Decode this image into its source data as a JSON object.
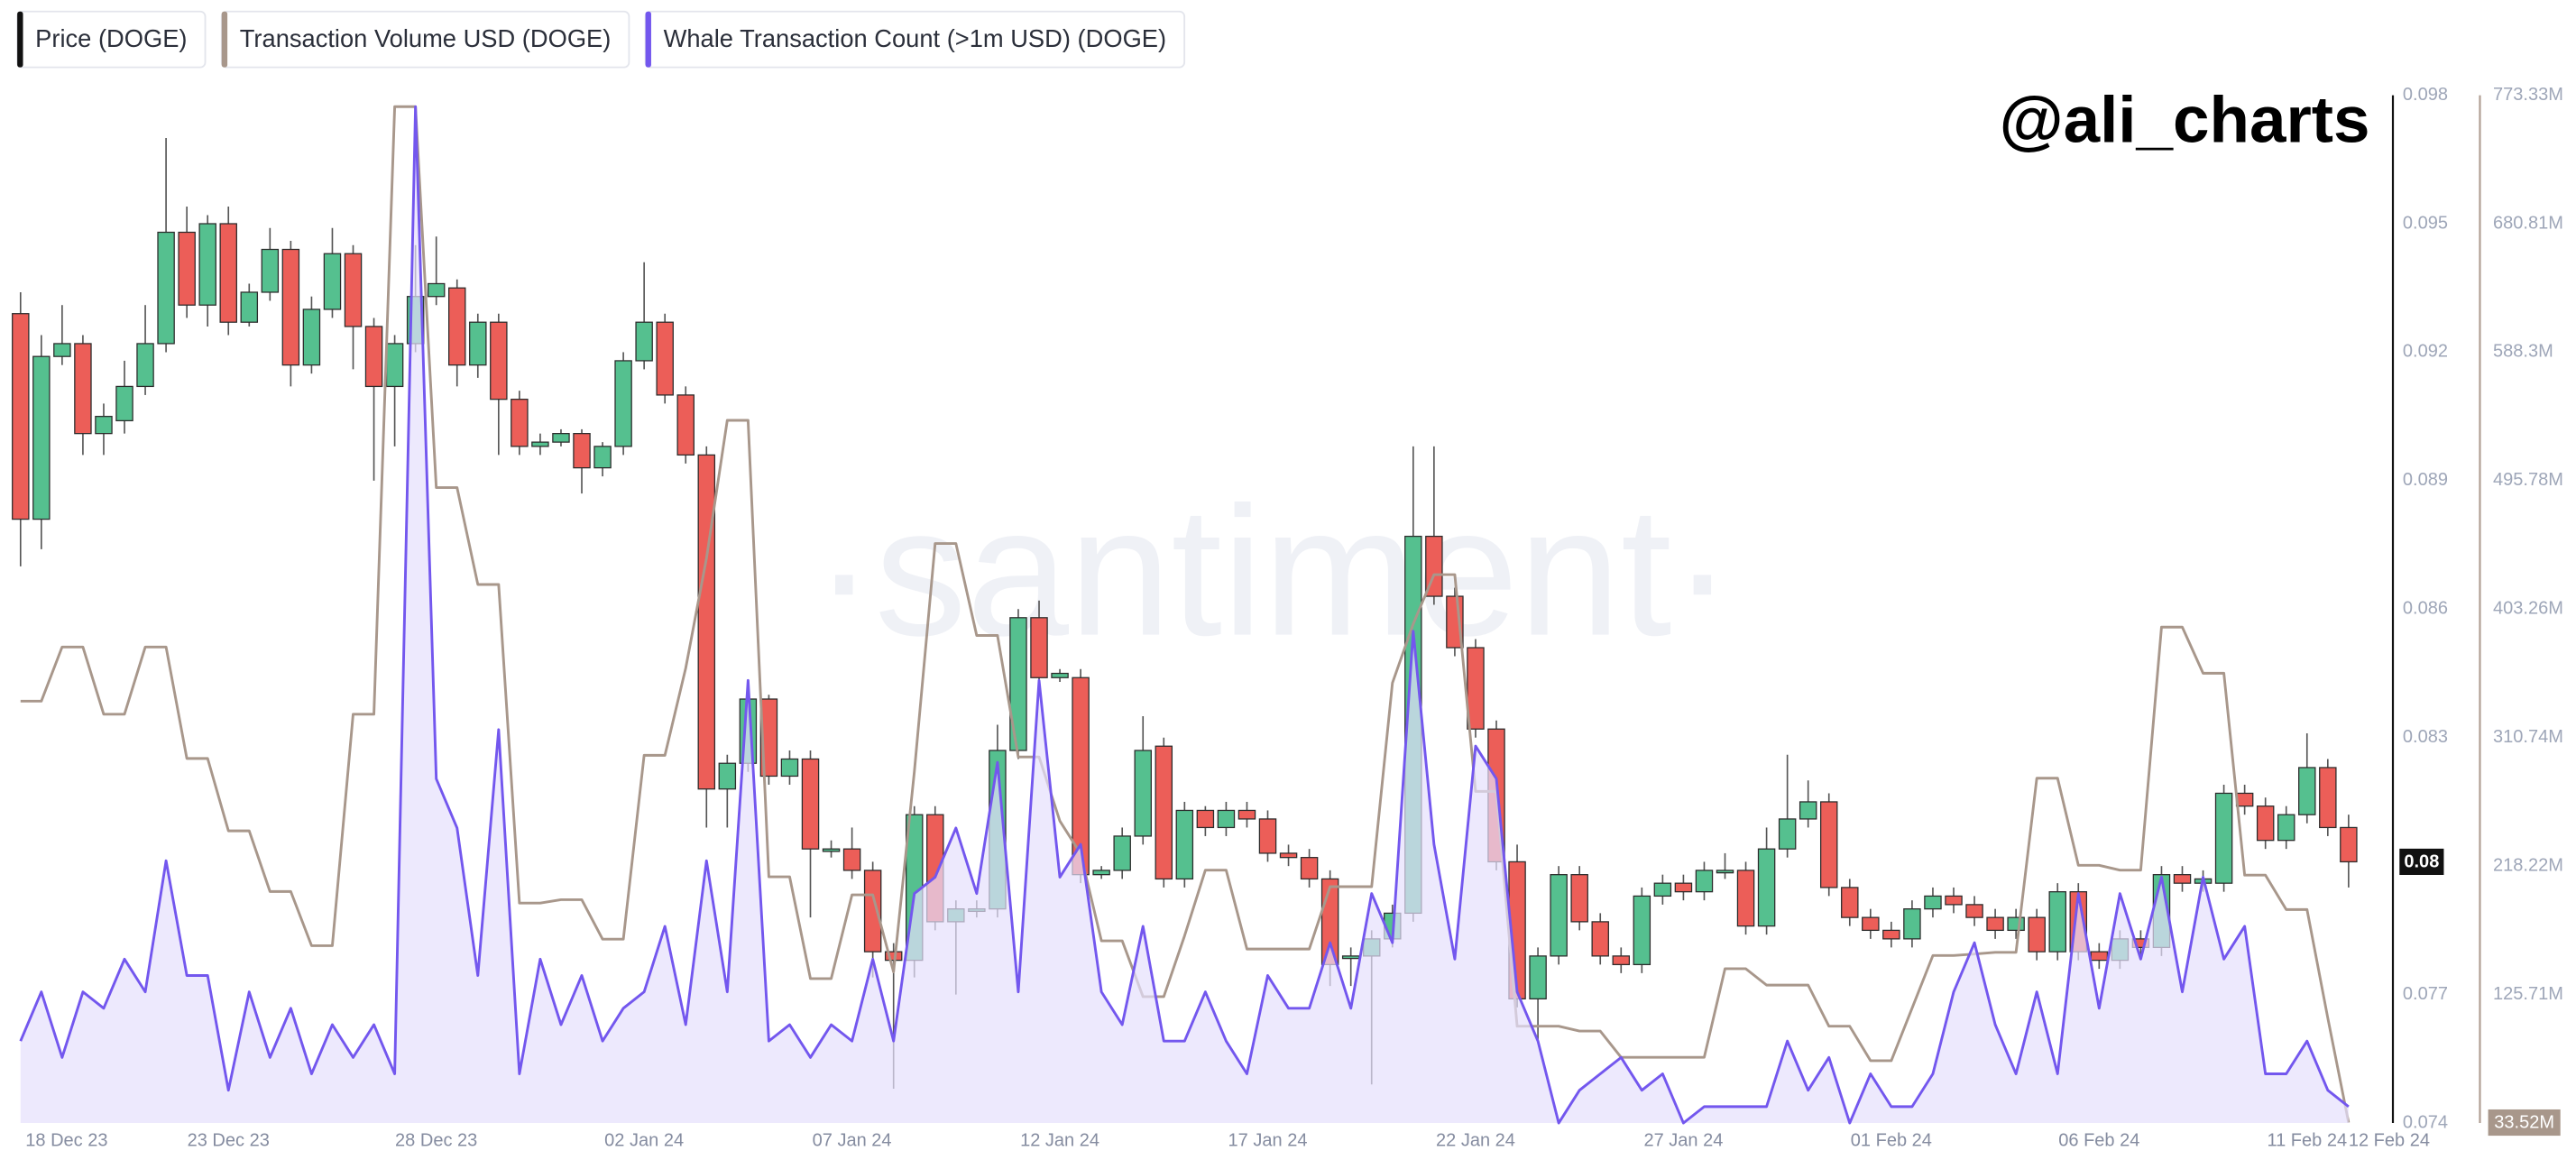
{
  "chart_data": {
    "type": "candlestick",
    "annotation": "@ali_charts",
    "watermark": "·santiment·",
    "categories": [
      "18 Dec 23",
      null,
      null,
      null,
      null,
      null,
      null,
      null,
      null,
      null,
      "23 Dec 23",
      null,
      null,
      null,
      null,
      null,
      null,
      null,
      null,
      null,
      "28 Dec 23",
      null,
      null,
      null,
      null,
      null,
      null,
      null,
      null,
      null,
      "02 Jan 24",
      null,
      null,
      null,
      null,
      null,
      null,
      null,
      null,
      null,
      "07 Jan 24",
      null,
      null,
      null,
      null,
      null,
      null,
      null,
      null,
      null,
      "12 Jan 24",
      null,
      null,
      null,
      null,
      null,
      null,
      null,
      null,
      null,
      "17 Jan 24",
      null,
      null,
      null,
      null,
      null,
      null,
      null,
      null,
      null,
      "22 Jan 24",
      null,
      null,
      null,
      null,
      null,
      null,
      null,
      null,
      null,
      "27 Jan 24",
      null,
      null,
      null,
      null,
      null,
      null,
      null,
      null,
      null,
      "01 Feb 24",
      null,
      null,
      null,
      null,
      null,
      null,
      null,
      null,
      null,
      "06 Feb 24",
      null,
      null,
      null,
      null,
      null,
      null,
      null,
      null,
      null,
      "11 Feb 24",
      null,
      "12 Feb 24"
    ],
    "ylim": [
      0.074,
      0.098
    ],
    "yticks": [
      0.074,
      0.077,
      0.083,
      0.086,
      0.089,
      0.092,
      0.095,
      0.098
    ],
    "y2lim": [
      33190000,
      773330000
    ],
    "y2ticks": [
      {
        "value": 125710000,
        "label": "125.71M"
      },
      {
        "value": 218220000,
        "label": "218.22M"
      },
      {
        "value": 310740000,
        "label": "310.74M"
      },
      {
        "value": 403260000,
        "label": "403.26M"
      },
      {
        "value": 495780000,
        "label": "495.78M"
      },
      {
        "value": 588300000,
        "label": "588.3M"
      },
      {
        "value": 680810000,
        "label": "680.81M"
      },
      {
        "value": 773330000,
        "label": "773.33M"
      }
    ],
    "grid": false,
    "series": [
      {
        "name": "Price (DOGE)",
        "type": "candlestick",
        "color": "#111111",
        "up_color": "#55c08f",
        "down_color": "#ec5e58",
        "last_value_label": "0.08",
        "open": [
          0.0929,
          0.0881,
          0.0919,
          0.0922,
          0.0901,
          0.0904,
          0.0912,
          0.0922,
          0.0948,
          0.0931,
          0.095,
          0.0927,
          0.0934,
          0.0944,
          0.0917,
          0.093,
          0.0943,
          0.0926,
          0.0912,
          0.0922,
          0.0933,
          0.0935,
          0.0917,
          0.0927,
          0.0909,
          0.0898,
          0.0899,
          0.0901,
          0.0893,
          0.0898,
          0.0918,
          0.0927,
          0.091,
          0.0896,
          0.0818,
          0.0824,
          0.0839,
          0.0821,
          0.0825,
          0.0804,
          0.0804,
          0.0799,
          0.078,
          0.0778,
          0.0812,
          0.0787,
          0.079,
          0.079,
          0.0827,
          0.0858,
          0.0844,
          0.0844,
          0.0798,
          0.0799,
          0.0807,
          0.0828,
          0.0797,
          0.0813,
          0.0809,
          0.0813,
          0.0811,
          0.0803,
          0.0802,
          0.0797,
          0.0779,
          0.0779,
          0.0783,
          0.0789,
          0.0877,
          0.0863,
          0.0851,
          0.0832,
          0.0801,
          0.0769,
          0.0779,
          0.0798,
          0.0787,
          0.0779,
          0.0777,
          0.0793,
          0.0796,
          0.0794,
          0.0799,
          0.0799,
          0.0786,
          0.0804,
          0.0811,
          0.0815,
          0.0795,
          0.0788,
          0.0785,
          0.0783,
          0.079,
          0.0793,
          0.0791,
          0.0788,
          0.0785,
          0.0788,
          0.078,
          0.0794,
          0.078,
          0.0778,
          0.0783,
          0.0781,
          0.0798,
          0.0796,
          0.0796,
          0.0817,
          0.0814,
          0.0806,
          0.0812,
          0.0823,
          0.0809
        ],
        "high": [
          0.0934,
          0.0924,
          0.0931,
          0.0924,
          0.0908,
          0.0918,
          0.0931,
          0.097,
          0.0954,
          0.0952,
          0.0954,
          0.0936,
          0.0949,
          0.0946,
          0.0933,
          0.0949,
          0.0945,
          0.0928,
          0.0924,
          0.0945,
          0.0947,
          0.0937,
          0.0929,
          0.0929,
          0.0911,
          0.0901,
          0.0902,
          0.0902,
          0.0899,
          0.092,
          0.0941,
          0.0929,
          0.0912,
          0.0898,
          0.0826,
          0.0843,
          0.084,
          0.0827,
          0.0827,
          0.0806,
          0.0809,
          0.0801,
          0.0782,
          0.0814,
          0.0814,
          0.0792,
          0.0792,
          0.0833,
          0.086,
          0.0862,
          0.0846,
          0.0846,
          0.08,
          0.0809,
          0.0835,
          0.083,
          0.0815,
          0.0814,
          0.0815,
          0.0815,
          0.0813,
          0.0805,
          0.0804,
          0.0799,
          0.0781,
          0.0785,
          0.0791,
          0.0898,
          0.0898,
          0.0865,
          0.0853,
          0.0834,
          0.0805,
          0.0781,
          0.08,
          0.08,
          0.0789,
          0.0781,
          0.0795,
          0.0798,
          0.0798,
          0.0801,
          0.0803,
          0.0801,
          0.0809,
          0.0826,
          0.082,
          0.0817,
          0.0797,
          0.079,
          0.0787,
          0.0792,
          0.0795,
          0.0795,
          0.0793,
          0.079,
          0.079,
          0.079,
          0.0796,
          0.0796,
          0.0782,
          0.0785,
          0.0785,
          0.08,
          0.08,
          0.0799,
          0.0819,
          0.0819,
          0.0816,
          0.0814,
          0.0831,
          0.0825,
          0.0812
        ],
        "low": [
          0.087,
          0.0874,
          0.0917,
          0.0896,
          0.0896,
          0.0901,
          0.091,
          0.092,
          0.0928,
          0.0926,
          0.0924,
          0.0926,
          0.0932,
          0.0912,
          0.0915,
          0.0928,
          0.0916,
          0.089,
          0.0898,
          0.092,
          0.0931,
          0.0912,
          0.0914,
          0.0896,
          0.0896,
          0.0896,
          0.0898,
          0.0887,
          0.0891,
          0.0896,
          0.0916,
          0.0908,
          0.0894,
          0.0809,
          0.0809,
          0.0822,
          0.0819,
          0.0819,
          0.0788,
          0.0802,
          0.0797,
          0.0774,
          0.0748,
          0.0774,
          0.0785,
          0.077,
          0.0788,
          0.0788,
          0.0825,
          0.0842,
          0.0843,
          0.0796,
          0.0797,
          0.0797,
          0.0805,
          0.0795,
          0.0795,
          0.0807,
          0.0807,
          0.0809,
          0.0801,
          0.08,
          0.0795,
          0.0772,
          0.0772,
          0.0749,
          0.0781,
          0.0787,
          0.0861,
          0.0849,
          0.083,
          0.0799,
          0.0767,
          0.0759,
          0.0777,
          0.0785,
          0.0777,
          0.0775,
          0.0775,
          0.0791,
          0.0792,
          0.0792,
          0.0797,
          0.0784,
          0.0784,
          0.0802,
          0.0809,
          0.0793,
          0.0786,
          0.0783,
          0.0781,
          0.0781,
          0.0788,
          0.0789,
          0.0786,
          0.0783,
          0.0783,
          0.0778,
          0.0778,
          0.0778,
          0.0776,
          0.0776,
          0.0779,
          0.0779,
          0.0794,
          0.0794,
          0.0794,
          0.0812,
          0.0804,
          0.0804,
          0.081,
          0.0807,
          0.0795
        ],
        "close": [
          0.0881,
          0.0919,
          0.0922,
          0.0901,
          0.0905,
          0.0912,
          0.0922,
          0.0948,
          0.0931,
          0.095,
          0.0927,
          0.0934,
          0.0944,
          0.0917,
          0.093,
          0.0943,
          0.0926,
          0.0912,
          0.0922,
          0.0933,
          0.0936,
          0.0917,
          0.0927,
          0.0909,
          0.0898,
          0.0899,
          0.0901,
          0.0893,
          0.0898,
          0.0918,
          0.0927,
          0.091,
          0.0896,
          0.0818,
          0.0824,
          0.0839,
          0.0821,
          0.0825,
          0.0804,
          0.0804,
          0.0799,
          0.078,
          0.0778,
          0.0812,
          0.0787,
          0.079,
          0.079,
          0.0827,
          0.0858,
          0.0844,
          0.0845,
          0.0798,
          0.0799,
          0.0807,
          0.0827,
          0.0797,
          0.0813,
          0.0809,
          0.0813,
          0.0811,
          0.0803,
          0.0802,
          0.0797,
          0.0777,
          0.0779,
          0.0783,
          0.0789,
          0.0877,
          0.0863,
          0.0851,
          0.0832,
          0.0801,
          0.0769,
          0.0779,
          0.0798,
          0.0787,
          0.0779,
          0.0777,
          0.0793,
          0.0796,
          0.0794,
          0.0799,
          0.0799,
          0.0786,
          0.0804,
          0.0811,
          0.0815,
          0.0795,
          0.0788,
          0.0785,
          0.0783,
          0.079,
          0.0793,
          0.0791,
          0.0788,
          0.0785,
          0.0788,
          0.078,
          0.0794,
          0.078,
          0.0778,
          0.0783,
          0.0781,
          0.0798,
          0.0796,
          0.0797,
          0.0817,
          0.0814,
          0.0806,
          0.0812,
          0.0823,
          0.0809,
          0.0801
        ]
      },
      {
        "name": "Transaction Volume USD (DOGE)",
        "type": "line",
        "axis": "y2",
        "color": "#a8978b",
        "last_value_label": "33.52M",
        "values": [
          337000000,
          337000000,
          376000000,
          376000000,
          327600000,
          327600000,
          376000000,
          376000000,
          295700000,
          295700000,
          243600000,
          243600000,
          199900000,
          199900000,
          160900000,
          160900000,
          327600000,
          327600000,
          765100000,
          765100000,
          490800000,
          490800000,
          421000000,
          421000000,
          191600000,
          191600000,
          194000000,
          194000000,
          165600000,
          165600000,
          298000000,
          298000000,
          360700000,
          439900000,
          539200000,
          539200000,
          210500000,
          210500000,
          137200000,
          137200000,
          197500000,
          197500000,
          142000000,
          286200000,
          450500000,
          450500000,
          384300000,
          384300000,
          296800000,
          296800000,
          250700000,
          227100000,
          164400000,
          164400000,
          124200000,
          124200000,
          168000000,
          215300000,
          215300000,
          158500000,
          158500000,
          158500000,
          158500000,
          203400000,
          203400000,
          203400000,
          350100000,
          392600000,
          428100000,
          428100000,
          272000000,
          272000000,
          102900000,
          102900000,
          102900000,
          99400000,
          99400000,
          80500000,
          80500000,
          80500000,
          80500000,
          80500000,
          144300000,
          144300000,
          132500000,
          132500000,
          132500000,
          102900000,
          102900000,
          78100000,
          78100000,
          115900000,
          153800000,
          153800000,
          154900000,
          156100000,
          156100000,
          281500000,
          281500000,
          218800000,
          218800000,
          215300000,
          215300000,
          390300000,
          390300000,
          357100000,
          357100000,
          211700000,
          211700000,
          186900000,
          186900000,
          108800000,
          33520000
        ]
      },
      {
        "name": "Whale Transaction Count (>1m USD) (DOGE)",
        "type": "area",
        "color": "#7357ee",
        "fill": "#e6e0fc",
        "values": [
          5,
          8,
          4,
          8,
          7,
          10,
          8,
          16,
          9,
          9,
          2,
          8,
          4,
          7,
          3,
          6,
          4,
          6,
          3,
          62,
          21,
          18,
          9,
          24,
          3,
          10,
          6,
          9,
          5,
          7,
          8,
          12,
          6,
          16,
          8,
          27,
          5,
          6,
          4,
          6,
          5,
          10,
          5,
          14,
          15,
          18,
          14,
          22,
          8,
          27,
          15,
          17,
          8,
          6,
          12,
          5,
          5,
          8,
          5,
          3,
          9,
          7,
          7,
          11,
          7,
          14,
          11,
          30,
          17,
          10,
          23,
          21,
          8,
          5,
          0,
          2,
          3,
          4,
          2,
          3,
          0,
          1,
          1,
          1,
          1,
          5,
          2,
          4,
          0,
          3,
          1,
          1,
          3,
          8,
          11,
          6,
          3,
          8,
          3,
          14,
          7,
          14,
          10,
          15,
          8,
          15,
          10,
          12,
          3,
          3,
          5,
          2,
          1
        ]
      }
    ]
  }
}
